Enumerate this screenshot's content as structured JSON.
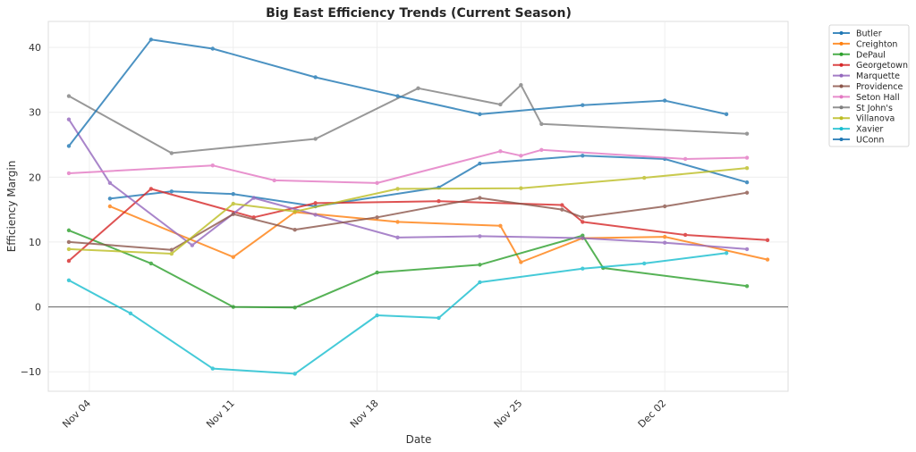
{
  "chart_data": {
    "type": "line",
    "title": "Big East Efficiency Trends (Current Season)",
    "xlabel": "Date",
    "ylabel": "Efficiency Margin",
    "ylim": [
      -13,
      44
    ],
    "xlim": [
      "2024-11-02",
      "2024-12-08"
    ],
    "yticks": [
      -10,
      0,
      10,
      20,
      30,
      40
    ],
    "ytick_labels": [
      "−10",
      "0",
      "10",
      "20",
      "30",
      "40"
    ],
    "xticks": [
      "2024-11-04",
      "2024-11-11",
      "2024-11-18",
      "2024-11-25",
      "2024-12-02"
    ],
    "xtick_labels": [
      "Nov 04",
      "Nov 11",
      "Nov 18",
      "Nov 25",
      "Dec 02"
    ],
    "grid": true,
    "zero_line": true,
    "legend_position": "outside-top-right",
    "series": [
      {
        "name": "Butler",
        "color": "#1f77b4",
        "points": [
          [
            "2024-11-05",
            16.7
          ],
          [
            "2024-11-08",
            17.8
          ],
          [
            "2024-11-11",
            17.4
          ],
          [
            "2024-11-15",
            15.5
          ],
          [
            "2024-11-21",
            18.4
          ],
          [
            "2024-11-23",
            22.1
          ],
          [
            "2024-11-28",
            23.3
          ],
          [
            "2024-12-02",
            22.8
          ],
          [
            "2024-12-06",
            19.2
          ]
        ]
      },
      {
        "name": "Creighton",
        "color": "#ff7f0e",
        "points": [
          [
            "2024-11-05",
            15.5
          ],
          [
            "2024-11-11",
            7.7
          ],
          [
            "2024-11-14",
            14.6
          ],
          [
            "2024-11-19",
            13.1
          ],
          [
            "2024-11-24",
            12.5
          ],
          [
            "2024-11-25",
            6.9
          ],
          [
            "2024-11-28",
            10.6
          ],
          [
            "2024-12-02",
            10.8
          ],
          [
            "2024-12-07",
            7.3
          ]
        ]
      },
      {
        "name": "DePaul",
        "color": "#2ca02c",
        "points": [
          [
            "2024-11-03",
            11.8
          ],
          [
            "2024-11-07",
            6.7
          ],
          [
            "2024-11-11",
            0.0
          ],
          [
            "2024-11-14",
            -0.1
          ],
          [
            "2024-11-18",
            5.3
          ],
          [
            "2024-11-23",
            6.5
          ],
          [
            "2024-11-28",
            11.0
          ],
          [
            "2024-11-29",
            6.0
          ],
          [
            "2024-12-06",
            3.2
          ]
        ]
      },
      {
        "name": "Georgetown",
        "color": "#d62728",
        "points": [
          [
            "2024-11-03",
            7.1
          ],
          [
            "2024-11-07",
            18.2
          ],
          [
            "2024-11-12",
            13.8
          ],
          [
            "2024-11-15",
            16.0
          ],
          [
            "2024-11-21",
            16.3
          ],
          [
            "2024-11-27",
            15.7
          ],
          [
            "2024-11-28",
            13.1
          ],
          [
            "2024-12-03",
            11.1
          ],
          [
            "2024-12-07",
            10.3
          ]
        ]
      },
      {
        "name": "Marquette",
        "color": "#9467bd",
        "points": [
          [
            "2024-11-03",
            28.9
          ],
          [
            "2024-11-05",
            19.1
          ],
          [
            "2024-11-09",
            9.5
          ],
          [
            "2024-11-12",
            16.8
          ],
          [
            "2024-11-15",
            14.2
          ],
          [
            "2024-11-19",
            10.7
          ],
          [
            "2024-11-23",
            10.9
          ],
          [
            "2024-11-28",
            10.6
          ],
          [
            "2024-12-02",
            9.9
          ],
          [
            "2024-12-06",
            8.9
          ]
        ]
      },
      {
        "name": "Providence",
        "color": "#8c564b",
        "points": [
          [
            "2024-11-03",
            10.0
          ],
          [
            "2024-11-08",
            8.8
          ],
          [
            "2024-11-11",
            14.3
          ],
          [
            "2024-11-14",
            11.9
          ],
          [
            "2024-11-18",
            13.8
          ],
          [
            "2024-11-23",
            16.8
          ],
          [
            "2024-11-27",
            15.0
          ],
          [
            "2024-11-28",
            13.8
          ],
          [
            "2024-12-02",
            15.5
          ],
          [
            "2024-12-06",
            17.6
          ]
        ]
      },
      {
        "name": "Seton Hall",
        "color": "#e377c2",
        "points": [
          [
            "2024-11-03",
            20.6
          ],
          [
            "2024-11-10",
            21.8
          ],
          [
            "2024-11-13",
            19.5
          ],
          [
            "2024-11-18",
            19.1
          ],
          [
            "2024-11-24",
            24.0
          ],
          [
            "2024-11-25",
            23.3
          ],
          [
            "2024-11-26",
            24.2
          ],
          [
            "2024-12-03",
            22.8
          ],
          [
            "2024-12-06",
            23.0
          ]
        ]
      },
      {
        "name": "St John's",
        "color": "#7f7f7f",
        "points": [
          [
            "2024-11-03",
            32.5
          ],
          [
            "2024-11-08",
            23.7
          ],
          [
            "2024-11-15",
            25.9
          ],
          [
            "2024-11-20",
            33.7
          ],
          [
            "2024-11-24",
            31.2
          ],
          [
            "2024-11-25",
            34.2
          ],
          [
            "2024-11-26",
            28.2
          ],
          [
            "2024-12-06",
            26.7
          ]
        ]
      },
      {
        "name": "Villanova",
        "color": "#bcbd22",
        "points": [
          [
            "2024-11-03",
            8.9
          ],
          [
            "2024-11-08",
            8.2
          ],
          [
            "2024-11-11",
            15.9
          ],
          [
            "2024-11-14",
            14.7
          ],
          [
            "2024-11-19",
            18.2
          ],
          [
            "2024-11-25",
            18.3
          ],
          [
            "2024-12-01",
            19.9
          ],
          [
            "2024-12-06",
            21.4
          ]
        ]
      },
      {
        "name": "Xavier",
        "color": "#17becf",
        "points": [
          [
            "2024-11-03",
            4.1
          ],
          [
            "2024-11-06",
            -1.0
          ],
          [
            "2024-11-10",
            -9.5
          ],
          [
            "2024-11-14",
            -10.3
          ],
          [
            "2024-11-18",
            -1.3
          ],
          [
            "2024-11-21",
            -1.7
          ],
          [
            "2024-11-23",
            3.8
          ],
          [
            "2024-11-28",
            5.9
          ],
          [
            "2024-12-01",
            6.7
          ],
          [
            "2024-12-05",
            8.3
          ]
        ]
      },
      {
        "name": "UConn",
        "color": "#1f77b4",
        "points": [
          [
            "2024-11-03",
            24.8
          ],
          [
            "2024-11-07",
            41.2
          ],
          [
            "2024-11-10",
            39.8
          ],
          [
            "2024-11-15",
            35.4
          ],
          [
            "2024-11-19",
            32.5
          ],
          [
            "2024-11-23",
            29.7
          ],
          [
            "2024-11-28",
            31.1
          ],
          [
            "2024-12-02",
            31.8
          ],
          [
            "2024-12-05",
            29.7
          ]
        ]
      }
    ]
  }
}
